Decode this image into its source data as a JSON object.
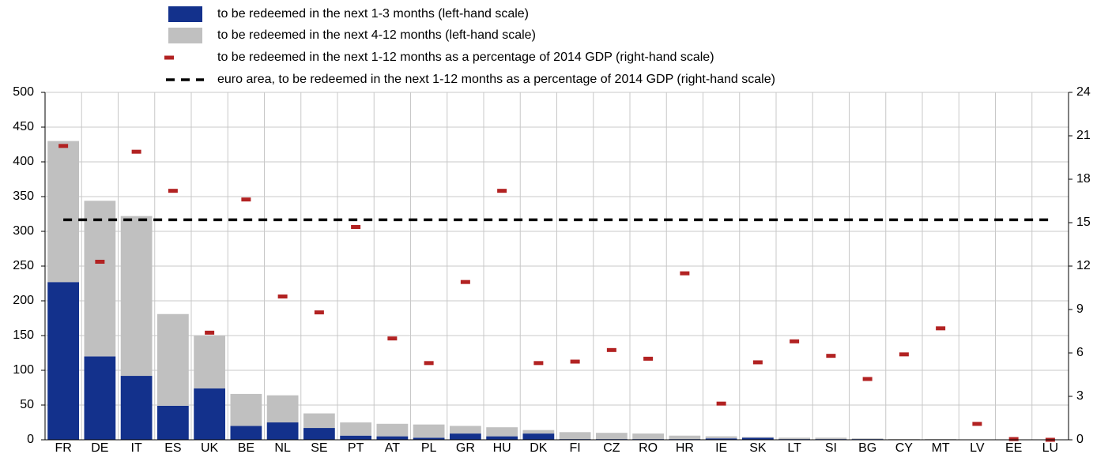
{
  "chart_data": {
    "type": "bar",
    "stacked": true,
    "categories": [
      "FR",
      "DE",
      "IT",
      "ES",
      "UK",
      "BE",
      "NL",
      "SE",
      "PT",
      "AT",
      "PL",
      "GR",
      "HU",
      "DK",
      "FI",
      "CZ",
      "RO",
      "HR",
      "IE",
      "SK",
      "LT",
      "SI",
      "BG",
      "CY",
      "MT",
      "LV",
      "EE",
      "LU"
    ],
    "series": [
      {
        "name": "to be redeemed in the next 1-3 months (left-hand scale)",
        "color": "#13318c",
        "axis": "y",
        "mark": "bar",
        "values": [
          227,
          120,
          92,
          49,
          74,
          20,
          25,
          17,
          6,
          5,
          3,
          9,
          5,
          9,
          1,
          1,
          1,
          1,
          2,
          3,
          1,
          1,
          1,
          0.5,
          0.5,
          0.3,
          0,
          0
        ]
      },
      {
        "name": "to be redeemed in the next 4-12 months (left-hand scale)",
        "color": "#c0c0c0",
        "axis": "y",
        "mark": "bar",
        "values": [
          203,
          224,
          230,
          132,
          76,
          46,
          39,
          21,
          19,
          18,
          19,
          11,
          13,
          5,
          10,
          9,
          8,
          5,
          3,
          1,
          2,
          2,
          1,
          0.5,
          0.5,
          0.2,
          0.2,
          0.2
        ]
      },
      {
        "name": "to be redeemed in the next 1-12 months as a percentage of 2014 GDP (right-hand scale)",
        "color": "#b22222",
        "axis": "y2",
        "mark": "dash",
        "values": [
          20.3,
          12.3,
          19.9,
          17.2,
          7.4,
          16.6,
          9.9,
          8.8,
          14.7,
          7.0,
          5.3,
          10.9,
          17.2,
          5.3,
          5.4,
          6.2,
          5.6,
          11.5,
          2.5,
          5.35,
          6.8,
          5.8,
          4.2,
          5.9,
          7.7,
          1.1,
          0.05,
          0
        ]
      }
    ],
    "reference_lines": [
      {
        "name": "euro area, to be redeemed in the next 1-12 months as a percentage of 2014 GDP (right-hand scale)",
        "color": "#000000",
        "axis": "y2",
        "value": 15.2
      }
    ],
    "ylim": [
      0,
      500
    ],
    "yticks": [
      0,
      50,
      100,
      150,
      200,
      250,
      300,
      350,
      400,
      450,
      500
    ],
    "y2lim": [
      0,
      24
    ],
    "y2ticks": [
      0,
      3,
      6,
      9,
      12,
      15,
      18,
      21,
      24
    ],
    "grid": true
  }
}
